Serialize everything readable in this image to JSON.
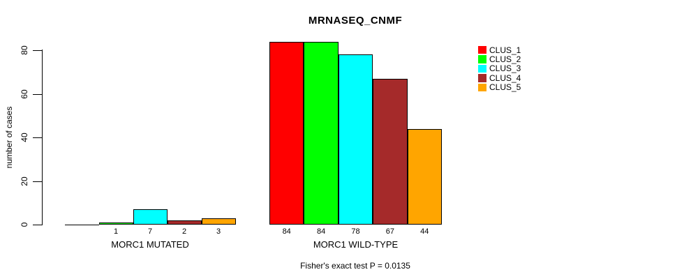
{
  "title": "MRNASEQ_CNMF",
  "y_axis": {
    "label": "number of cases",
    "ticks": [
      0,
      20,
      40,
      60,
      80
    ]
  },
  "legend": {
    "entries": [
      {
        "label": "CLUS_1",
        "color": "#FF0000"
      },
      {
        "label": "CLUS_2",
        "color": "#00FF00"
      },
      {
        "label": "CLUS_3",
        "color": "#00FFFF"
      },
      {
        "label": "CLUS_4",
        "color": "#A52A2A"
      },
      {
        "label": "CLUS_5",
        "color": "#FFA500"
      }
    ]
  },
  "footer": "Fisher's exact test P = 0.0135",
  "chart_data": {
    "type": "bar",
    "title": "MRNASEQ_CNMF",
    "xlabel": "",
    "ylabel": "number of cases",
    "ylim": [
      0,
      84
    ],
    "yticks": [
      0,
      20,
      40,
      60,
      80
    ],
    "grid": false,
    "legend_position": "right",
    "categories": [
      "MORC1 MUTATED",
      "MORC1 WILD-TYPE"
    ],
    "series": [
      {
        "name": "CLUS_1",
        "color": "#FF0000",
        "values": [
          0,
          84
        ]
      },
      {
        "name": "CLUS_2",
        "color": "#00FF00",
        "values": [
          1,
          84
        ]
      },
      {
        "name": "CLUS_3",
        "color": "#00FFFF",
        "values": [
          7,
          78
        ]
      },
      {
        "name": "CLUS_4",
        "color": "#A52A2A",
        "values": [
          2,
          67
        ]
      },
      {
        "name": "CLUS_5",
        "color": "#FFA500",
        "values": [
          3,
          44
        ]
      }
    ],
    "bar_value_labels_shown": true,
    "zero_value_labels_hidden": true,
    "annotation": "Fisher's exact test P = 0.0135"
  }
}
